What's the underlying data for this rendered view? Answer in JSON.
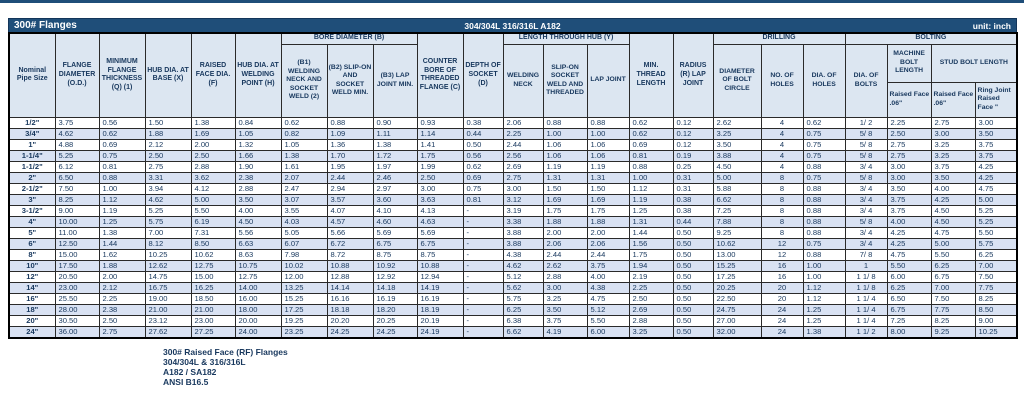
{
  "title_bar": {
    "title": "300# Flanges",
    "material": "304/304L 316/316L A182",
    "unit": "unit: inch"
  },
  "colors": {
    "navy_bar": "#1F4E79",
    "header_bg": "#DCE6F1",
    "band_row_bg": "#D9E2F3",
    "text": "#17375D"
  },
  "table": {
    "groups": {
      "bore": "BORE DIAMETER (B)",
      "length_hub": "LENGTH THROUGH HUB (Y)",
      "drilling": "DRILLING",
      "bolting": "BOLTING"
    },
    "columns": {
      "nominal": "Nominal Pipe Size",
      "flange_diameter": "FLANGE DIAMETER (O.D.)",
      "min_thickness": "MINIMUM FLANGE THICKNESS (Q) (1)",
      "hub_dia_base": "HUB DIA. AT BASE (X)",
      "raised_face_dia": "RAISED FACE DIA. (F)",
      "hub_dia_welding": "HUB DIA. AT WELDING POINT (H)",
      "b1": "(B1) WELDING NECK AND SOCKET WELD (2)",
      "b2": "(B2) SLIP-ON AND SOCKET WELD MIN.",
      "b3": "(B3) LAP JOINT MIN.",
      "counter_bore": "COUNTER BORE OF THREADED FLANGE (C)",
      "depth_socket": "DEPTH OF SOCKET (D)",
      "welding_neck": "WELDING NECK",
      "slip_on": "SLIP-ON SOCKET WELD AND THREADED",
      "lap_joint": "LAP JOINT",
      "min_thread": "MIN. THREAD LENGTH",
      "radius": "RADIUS (R) LAP JOINT",
      "bolt_circle": "DIAMETER OF BOLT CIRCLE",
      "no_holes": "NO. OF HOLES",
      "dia_holes": "DIA. OF HOLES",
      "dia_bolts": "DIA. OF BOLTS",
      "machine_bolt": "MACHINE BOLT LENGTH",
      "stud_bolt": "STUD BOLT LENGTH",
      "machine_sub": "Raised Face .06\"",
      "stud_sub_rf": "Raised Face .06\"",
      "stud_sub_rj": "Ring Joint Raised Face \""
    },
    "rows": [
      [
        "1/2\"",
        "3.75",
        "0.56",
        "1.50",
        "1.38",
        "0.84",
        "0.62",
        "0.88",
        "0.90",
        "0.93",
        "0.38",
        "2.06",
        "0.88",
        "0.88",
        "0.62",
        "0.12",
        "2.62",
        "4",
        "0.62",
        "1/ 2",
        "2.25",
        "2.75",
        "3.00"
      ],
      [
        "3/4\"",
        "4.62",
        "0.62",
        "1.88",
        "1.69",
        "1.05",
        "0.82",
        "1.09",
        "1.11",
        "1.14",
        "0.44",
        "2.25",
        "1.00",
        "1.00",
        "0.62",
        "0.12",
        "3.25",
        "4",
        "0.75",
        "5/ 8",
        "2.50",
        "3.00",
        "3.50"
      ],
      [
        "1\"",
        "4.88",
        "0.69",
        "2.12",
        "2.00",
        "1.32",
        "1.05",
        "1.36",
        "1.38",
        "1.41",
        "0.50",
        "2.44",
        "1.06",
        "1.06",
        "0.69",
        "0.12",
        "3.50",
        "4",
        "0.75",
        "5/ 8",
        "2.75",
        "3.25",
        "3.75"
      ],
      [
        "1-1/4\"",
        "5.25",
        "0.75",
        "2.50",
        "2.50",
        "1.66",
        "1.38",
        "1.70",
        "1.72",
        "1.75",
        "0.56",
        "2.56",
        "1.06",
        "1.06",
        "0.81",
        "0.19",
        "3.88",
        "4",
        "0.75",
        "5/ 8",
        "2.75",
        "3.25",
        "3.75"
      ],
      [
        "1-1/2\"",
        "6.12",
        "0.81",
        "2.75",
        "2.88",
        "1.90",
        "1.61",
        "1.95",
        "1.97",
        "1.99",
        "0.62",
        "2.69",
        "1.19",
        "1.19",
        "0.88",
        "0.25",
        "4.50",
        "4",
        "0.88",
        "3/ 4",
        "3.00",
        "3.75",
        "4.25"
      ],
      [
        "2\"",
        "6.50",
        "0.88",
        "3.31",
        "3.62",
        "2.38",
        "2.07",
        "2.44",
        "2.46",
        "2.50",
        "0.69",
        "2.75",
        "1.31",
        "1.31",
        "1.00",
        "0.31",
        "5.00",
        "8",
        "0.75",
        "5/ 8",
        "3.00",
        "3.50",
        "4.25"
      ],
      [
        "2-1/2\"",
        "7.50",
        "1.00",
        "3.94",
        "4.12",
        "2.88",
        "2.47",
        "2.94",
        "2.97",
        "3.00",
        "0.75",
        "3.00",
        "1.50",
        "1.50",
        "1.12",
        "0.31",
        "5.88",
        "8",
        "0.88",
        "3/ 4",
        "3.50",
        "4.00",
        "4.75"
      ],
      [
        "3\"",
        "8.25",
        "1.12",
        "4.62",
        "5.00",
        "3.50",
        "3.07",
        "3.57",
        "3.60",
        "3.63",
        "0.81",
        "3.12",
        "1.69",
        "1.69",
        "1.19",
        "0.38",
        "6.62",
        "8",
        "0.88",
        "3/ 4",
        "3.75",
        "4.25",
        "5.00"
      ],
      [
        "3-1/2\"",
        "9.00",
        "1.19",
        "5.25",
        "5.50",
        "4.00",
        "3.55",
        "4.07",
        "4.10",
        "4.13",
        "-",
        "3.19",
        "1.75",
        "1.75",
        "1.25",
        "0.38",
        "7.25",
        "8",
        "0.88",
        "3/ 4",
        "3.75",
        "4.50",
        "5.25"
      ],
      [
        "4\"",
        "10.00",
        "1.25",
        "5.75",
        "6.19",
        "4.50",
        "4.03",
        "4.57",
        "4.60",
        "4.63",
        "-",
        "3.38",
        "1.88",
        "1.88",
        "1.31",
        "0.44",
        "7.88",
        "8",
        "0.88",
        "5/ 8",
        "4.00",
        "4.50",
        "5.25"
      ],
      [
        "5\"",
        "11.00",
        "1.38",
        "7.00",
        "7.31",
        "5.56",
        "5.05",
        "5.66",
        "5.69",
        "5.69",
        "-",
        "3.88",
        "2.00",
        "2.00",
        "1.44",
        "0.50",
        "9.25",
        "8",
        "0.88",
        "3/ 4",
        "4.25",
        "4.75",
        "5.50"
      ],
      [
        "6\"",
        "12.50",
        "1.44",
        "8.12",
        "8.50",
        "6.63",
        "6.07",
        "6.72",
        "6.75",
        "6.75",
        "-",
        "3.88",
        "2.06",
        "2.06",
        "1.56",
        "0.50",
        "10.62",
        "12",
        "0.75",
        "3/ 4",
        "4.25",
        "5.00",
        "5.75"
      ],
      [
        "8\"",
        "15.00",
        "1.62",
        "10.25",
        "10.62",
        "8.63",
        "7.98",
        "8.72",
        "8.75",
        "8.75",
        "-",
        "4.38",
        "2.44",
        "2.44",
        "1.75",
        "0.50",
        "13.00",
        "12",
        "0.88",
        "7/ 8",
        "4.75",
        "5.50",
        "6.25"
      ],
      [
        "10\"",
        "17.50",
        "1.88",
        "12.62",
        "12.75",
        "10.75",
        "10.02",
        "10.88",
        "10.92",
        "10.88",
        "-",
        "4.62",
        "2.62",
        "3.75",
        "1.94",
        "0.50",
        "15.25",
        "16",
        "1.00",
        "1",
        "5.50",
        "6.25",
        "7.00"
      ],
      [
        "12\"",
        "20.50",
        "2.00",
        "14.75",
        "15.00",
        "12.75",
        "12.00",
        "12.88",
        "12.92",
        "12.94",
        "-",
        "5.12",
        "2.88",
        "4.00",
        "2.19",
        "0.50",
        "17.25",
        "16",
        "1.00",
        "1 1/ 8",
        "6.00",
        "6.75",
        "7.50"
      ],
      [
        "14\"",
        "23.00",
        "2.12",
        "16.75",
        "16.25",
        "14.00",
        "13.25",
        "14.14",
        "14.18",
        "14.19",
        "-",
        "5.62",
        "3.00",
        "4.38",
        "2.25",
        "0.50",
        "20.25",
        "20",
        "1.12",
        "1 1/ 8",
        "6.25",
        "7.00",
        "7.75"
      ],
      [
        "16\"",
        "25.50",
        "2.25",
        "19.00",
        "18.50",
        "16.00",
        "15.25",
        "16.16",
        "16.19",
        "16.19",
        "-",
        "5.75",
        "3.25",
        "4.75",
        "2.50",
        "0.50",
        "22.50",
        "20",
        "1.12",
        "1 1/ 4",
        "6.50",
        "7.50",
        "8.25"
      ],
      [
        "18\"",
        "28.00",
        "2.38",
        "21.00",
        "21.00",
        "18.00",
        "17.25",
        "18.18",
        "18.20",
        "18.19",
        "-",
        "6.25",
        "3.50",
        "5.12",
        "2.69",
        "0.50",
        "24.75",
        "24",
        "1.25",
        "1 1/ 4",
        "6.75",
        "7.75",
        "8.50"
      ],
      [
        "20\"",
        "30.50",
        "2.50",
        "23.12",
        "23.00",
        "20.00",
        "19.25",
        "20.20",
        "20.25",
        "20.19",
        "-",
        "6.38",
        "3.75",
        "5.50",
        "2.88",
        "0.50",
        "27.00",
        "24",
        "1.25",
        "1 1/ 4",
        "7.25",
        "8.25",
        "9.00"
      ],
      [
        "24\"",
        "36.00",
        "2.75",
        "27.62",
        "27.25",
        "24.00",
        "23.25",
        "24.25",
        "24.25",
        "24.19",
        "-",
        "6.62",
        "4.19",
        "6.00",
        "3.25",
        "0.50",
        "32.00",
        "24",
        "1.38",
        "1 1/ 2",
        "8.00",
        "9.25",
        "10.25"
      ]
    ]
  },
  "footer": {
    "lines": [
      "300# Raised Face (RF) Flanges",
      "304/304L & 316/316L",
      "A182 / SA182",
      "ANSI B16.5"
    ]
  }
}
